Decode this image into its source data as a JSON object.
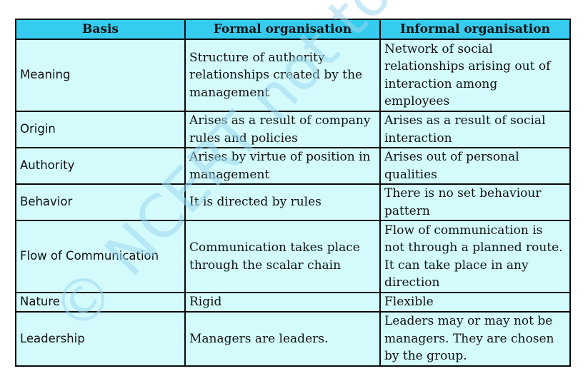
{
  "table": {
    "headers": [
      "Basis",
      "Formal organisation",
      "Informal organisation"
    ],
    "rows": [
      {
        "basis": "Meaning",
        "formal": "Structure of authority relationships created by the management",
        "informal": "Network of social relationships arising out of interaction among employees"
      },
      {
        "basis": "Origin",
        "formal": "Arises as a result of company rules and policies",
        "informal": "Arises as a result of social interaction"
      },
      {
        "basis": "Authority",
        "formal": "Arises by virtue of position in management",
        "informal": "Arises out of personal qualities"
      },
      {
        "basis": "Behavior",
        "formal": "It is directed by rules",
        "informal": "There is no set behaviour pattern"
      },
      {
        "basis": "Flow of Communication",
        "formal": "Communication takes place through the scalar chain",
        "informal": "Flow of communication is not through a planned route. It can take place in any direction"
      },
      {
        "basis": "Nature",
        "formal": "Rigid",
        "informal": "Flexible"
      },
      {
        "basis": "Leadership",
        "formal": "Managers are leaders.",
        "informal": "Leaders may or may not be managers. They are chosen by the group."
      }
    ]
  },
  "watermark": {
    "text": "© NCERT not to be republished",
    "color": "#9cd7ee"
  },
  "colors": {
    "header_bg": "#35ccef",
    "cell_bg": "#d3fbfc",
    "border": "#0a0a0a"
  }
}
